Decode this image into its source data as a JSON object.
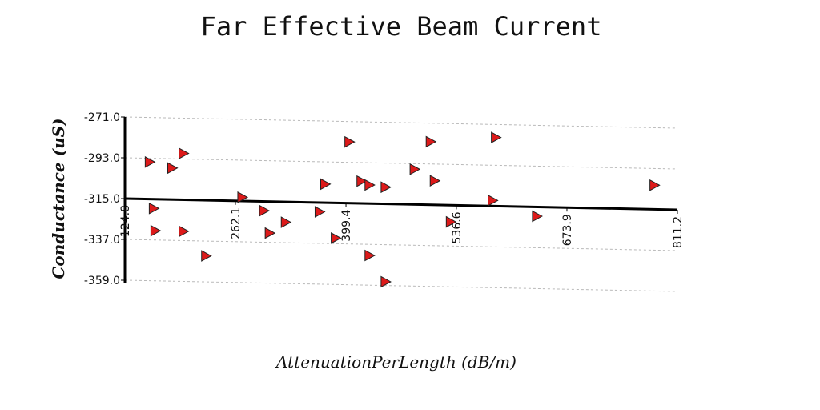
{
  "chart_data": {
    "type": "scatter",
    "title": "Far Effective Beam Current",
    "xlabel": "AttenuationPerLength (dB/m)",
    "ylabel": "Conductance (uS)",
    "xlim": [
      124.8,
      811.2
    ],
    "ylim": [
      -359.0,
      -271.0
    ],
    "xticks": [
      "124.8",
      "262.1",
      "399.4",
      "536.6",
      "673.9",
      "811.2"
    ],
    "yticks": [
      "-271.0",
      "-293.0",
      "-315.0",
      "-337.0",
      "-359.0"
    ],
    "grid": true,
    "marker": "triangle-right",
    "marker_color": "#dd1a1a",
    "points": [
      {
        "x": 155,
        "y": -295
      },
      {
        "x": 160,
        "y": -320
      },
      {
        "x": 162,
        "y": -332
      },
      {
        "x": 183,
        "y": -298
      },
      {
        "x": 197,
        "y": -290
      },
      {
        "x": 197,
        "y": -332
      },
      {
        "x": 225,
        "y": -345
      },
      {
        "x": 270,
        "y": -313
      },
      {
        "x": 297,
        "y": -320
      },
      {
        "x": 304,
        "y": -332
      },
      {
        "x": 324,
        "y": -326
      },
      {
        "x": 366,
        "y": -320
      },
      {
        "x": 373,
        "y": -305
      },
      {
        "x": 386,
        "y": -334
      },
      {
        "x": 403,
        "y": -282
      },
      {
        "x": 418,
        "y": -303
      },
      {
        "x": 428,
        "y": -305
      },
      {
        "x": 428,
        "y": -343
      },
      {
        "x": 448,
        "y": -306
      },
      {
        "x": 448,
        "y": -357
      },
      {
        "x": 484,
        "y": -296
      },
      {
        "x": 504,
        "y": -281
      },
      {
        "x": 509,
        "y": -302
      },
      {
        "x": 529,
        "y": -324
      },
      {
        "x": 581,
        "y": -312
      },
      {
        "x": 585,
        "y": -278
      },
      {
        "x": 636,
        "y": -320
      },
      {
        "x": 782,
        "y": -302
      }
    ]
  }
}
